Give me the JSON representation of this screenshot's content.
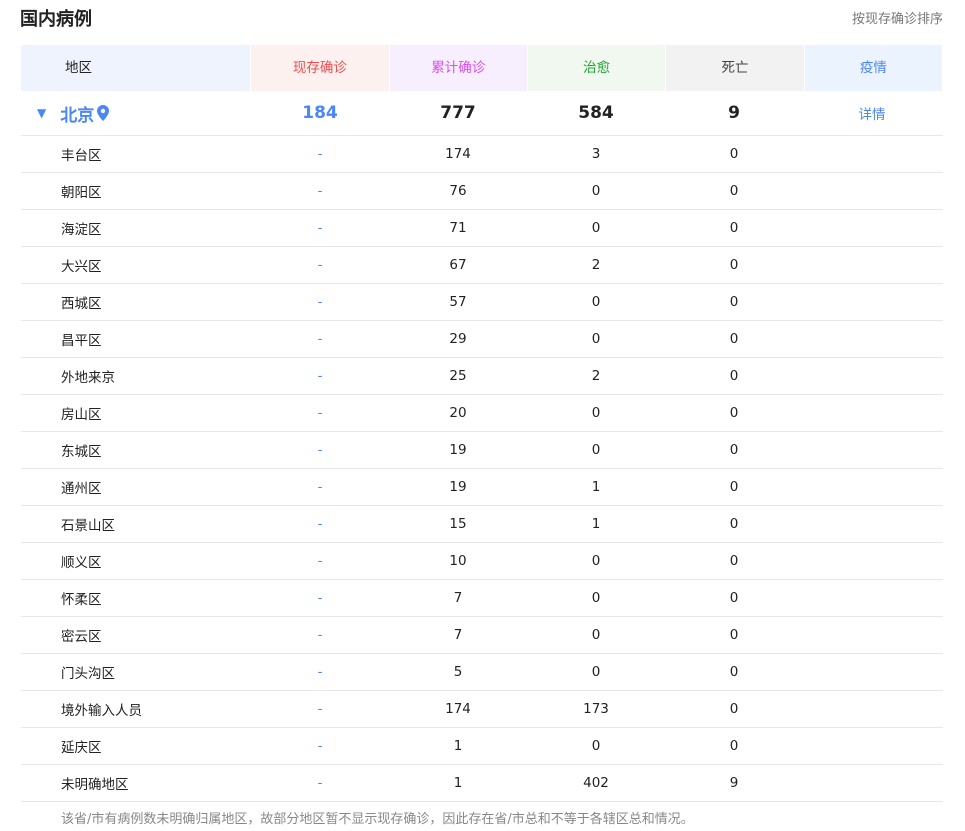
{
  "title": "国内病例",
  "sort_label": "按现存确诊排序",
  "headers": [
    "地区",
    "现存确诊",
    "累计确诊",
    "治愈",
    "死亡",
    "疫情"
  ],
  "colors": {
    "header_bg": [
      "#eef3fd",
      "#fcf1ef",
      "#f8effe",
      "#f0f8f0",
      "#f2f2f2",
      "#ebf3fe"
    ],
    "header_fg": [
      "#222222",
      "#f24d4d",
      "#d94cf0",
      "#25a335",
      "#444444",
      "#4a86f7"
    ],
    "accent": "#4a86f7"
  },
  "province": {
    "name": "北京",
    "current": "184",
    "total": "777",
    "cured": "584",
    "dead": "9",
    "detail": "详情"
  },
  "rows": [
    {
      "name": "丰台区",
      "current": "-",
      "total": "174",
      "cured": "3",
      "dead": "0"
    },
    {
      "name": "朝阳区",
      "current": "-",
      "total": "76",
      "cured": "0",
      "dead": "0"
    },
    {
      "name": "海淀区",
      "current": "-",
      "total": "71",
      "cured": "0",
      "dead": "0"
    },
    {
      "name": "大兴区",
      "current": "-",
      "total": "67",
      "cured": "2",
      "dead": "0"
    },
    {
      "name": "西城区",
      "current": "-",
      "total": "57",
      "cured": "0",
      "dead": "0"
    },
    {
      "name": "昌平区",
      "current": "-",
      "total": "29",
      "cured": "0",
      "dead": "0"
    },
    {
      "name": "外地来京",
      "current": "-",
      "total": "25",
      "cured": "2",
      "dead": "0"
    },
    {
      "name": "房山区",
      "current": "-",
      "total": "20",
      "cured": "0",
      "dead": "0"
    },
    {
      "name": "东城区",
      "current": "-",
      "total": "19",
      "cured": "0",
      "dead": "0"
    },
    {
      "name": "通州区",
      "current": "-",
      "total": "19",
      "cured": "1",
      "dead": "0"
    },
    {
      "name": "石景山区",
      "current": "-",
      "total": "15",
      "cured": "1",
      "dead": "0"
    },
    {
      "name": "顺义区",
      "current": "-",
      "total": "10",
      "cured": "0",
      "dead": "0"
    },
    {
      "name": "怀柔区",
      "current": "-",
      "total": "7",
      "cured": "0",
      "dead": "0"
    },
    {
      "name": "密云区",
      "current": "-",
      "total": "7",
      "cured": "0",
      "dead": "0"
    },
    {
      "name": "门头沟区",
      "current": "-",
      "total": "5",
      "cured": "0",
      "dead": "0"
    },
    {
      "name": "境外输入人员",
      "current": "-",
      "total": "174",
      "cured": "173",
      "dead": "0"
    },
    {
      "name": "延庆区",
      "current": "-",
      "total": "1",
      "cured": "0",
      "dead": "0"
    },
    {
      "name": "未明确地区",
      "current": "-",
      "total": "1",
      "cured": "402",
      "dead": "9"
    }
  ],
  "note": "该省/市有病例数未明确归属地区，故部分地区暂不显示现存确诊，因此存在省/市总和不等于各辖区总和情况。"
}
